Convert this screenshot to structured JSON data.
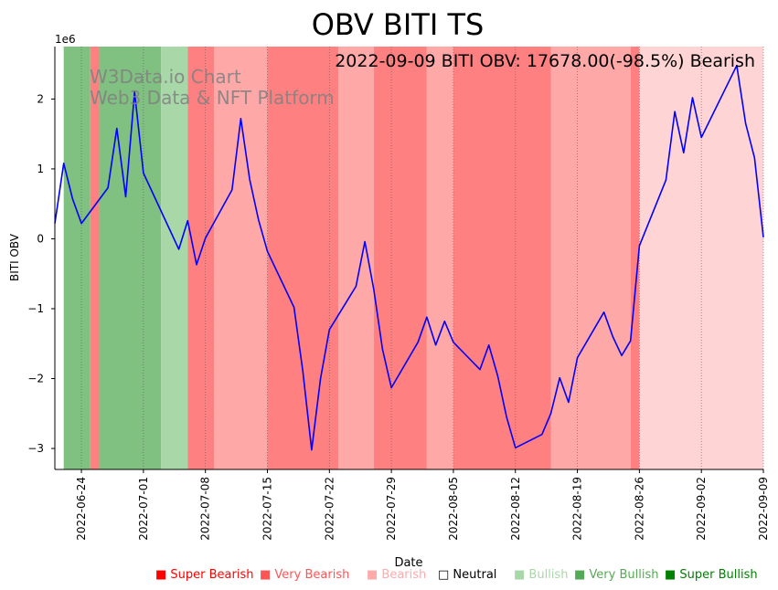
{
  "chart_data": {
    "type": "line",
    "title": "OBV BITI TS",
    "xlabel": "Date",
    "ylabel": "BITI OBV",
    "y_scale_label": "1e6",
    "annotation": "2022-09-09 BITI OBV: 17678.00(-98.5%) Bearish",
    "watermark": [
      "W3Data.io Chart",
      "Web3 Data & NFT Platform"
    ],
    "xlim": [
      "2022-06-21",
      "2022-09-09"
    ],
    "ylim": [
      -3.3,
      2.75
    ],
    "y_ticks": [
      -3,
      -2,
      -1,
      0,
      1,
      2
    ],
    "y_tick_labels": [
      "−3",
      "−2",
      "−1",
      "0",
      "1",
      "2"
    ],
    "x_ticks": [
      "2022-06-24",
      "2022-07-01",
      "2022-07-08",
      "2022-07-15",
      "2022-07-22",
      "2022-07-29",
      "2022-08-05",
      "2022-08-12",
      "2022-08-19",
      "2022-08-26",
      "2022-09-02",
      "2022-09-09"
    ],
    "series": [
      {
        "name": "BITI OBV",
        "color": "#0000ff",
        "unit": "1e6",
        "x": [
          "2022-06-21",
          "2022-06-22",
          "2022-06-23",
          "2022-06-24",
          "2022-06-27",
          "2022-06-28",
          "2022-06-29",
          "2022-06-30",
          "2022-07-01",
          "2022-07-05",
          "2022-07-06",
          "2022-07-07",
          "2022-07-08",
          "2022-07-11",
          "2022-07-12",
          "2022-07-13",
          "2022-07-14",
          "2022-07-15",
          "2022-07-18",
          "2022-07-19",
          "2022-07-20",
          "2022-07-21",
          "2022-07-22",
          "2022-07-25",
          "2022-07-26",
          "2022-07-27",
          "2022-07-28",
          "2022-07-29",
          "2022-08-01",
          "2022-08-02",
          "2022-08-03",
          "2022-08-04",
          "2022-08-05",
          "2022-08-08",
          "2022-08-09",
          "2022-08-10",
          "2022-08-11",
          "2022-08-12",
          "2022-08-15",
          "2022-08-16",
          "2022-08-17",
          "2022-08-18",
          "2022-08-19",
          "2022-08-22",
          "2022-08-23",
          "2022-08-24",
          "2022-08-25",
          "2022-08-26",
          "2022-08-29",
          "2022-08-30",
          "2022-08-31",
          "2022-09-01",
          "2022-09-02",
          "2022-09-06",
          "2022-09-07",
          "2022-09-08",
          "2022-09-09"
        ],
        "values": [
          0.22,
          1.08,
          0.57,
          0.22,
          0.73,
          1.58,
          0.6,
          2.1,
          0.94,
          -0.15,
          0.26,
          -0.37,
          0.01,
          0.7,
          1.72,
          0.85,
          0.27,
          -0.18,
          -0.98,
          -1.9,
          -3.02,
          -2.0,
          -1.3,
          -0.68,
          -0.04,
          -0.72,
          -1.58,
          -2.13,
          -1.48,
          -1.12,
          -1.52,
          -1.18,
          -1.48,
          -1.87,
          -1.52,
          -1.96,
          -2.55,
          -2.99,
          -2.8,
          -2.5,
          -1.99,
          -2.34,
          -1.7,
          -1.05,
          -1.4,
          -1.67,
          -1.46,
          -0.1,
          0.84,
          1.82,
          1.23,
          2.02,
          1.45,
          2.48,
          1.65,
          1.16,
          0.02
        ]
      }
    ],
    "sentiment_bands": [
      {
        "start": "2022-06-22",
        "end": "2022-06-25",
        "level": "very_bullish"
      },
      {
        "start": "2022-06-25",
        "end": "2022-06-26",
        "level": "very_bearish"
      },
      {
        "start": "2022-06-26",
        "end": "2022-07-03",
        "level": "very_bullish"
      },
      {
        "start": "2022-07-03",
        "end": "2022-07-06",
        "level": "bullish"
      },
      {
        "start": "2022-07-06",
        "end": "2022-07-09",
        "level": "very_bearish"
      },
      {
        "start": "2022-07-09",
        "end": "2022-07-15",
        "level": "bearish"
      },
      {
        "start": "2022-07-15",
        "end": "2022-07-23",
        "level": "very_bearish"
      },
      {
        "start": "2022-07-23",
        "end": "2022-07-27",
        "level": "bearish"
      },
      {
        "start": "2022-07-27",
        "end": "2022-08-02",
        "level": "very_bearish"
      },
      {
        "start": "2022-08-02",
        "end": "2022-08-05",
        "level": "bearish"
      },
      {
        "start": "2022-08-05",
        "end": "2022-08-16",
        "level": "very_bearish"
      },
      {
        "start": "2022-08-16",
        "end": "2022-08-25",
        "level": "bearish"
      },
      {
        "start": "2022-08-25",
        "end": "2022-08-26",
        "level": "very_bearish"
      },
      {
        "start": "2022-08-26",
        "end": "2022-09-09",
        "level": "light_bearish"
      }
    ],
    "band_colors": {
      "super_bearish": "#ff0000",
      "very_bearish": "#ff8080",
      "bearish": "#ffa8a8",
      "light_bearish": "#ffd4d4",
      "bullish": "#a8d8a8",
      "very_bullish": "#80c080",
      "super_bullish": "#008000"
    },
    "legend": [
      {
        "marker": "■",
        "label": "Super Bearish",
        "color": "#ff0000"
      },
      {
        "marker": "■",
        "label": "Very Bearish",
        "color": "#ff5555"
      },
      {
        "marker": "■",
        "label": "Bearish",
        "color": "#ffaaaa"
      },
      {
        "marker": "□",
        "label": "Neutral",
        "color": "#000000"
      },
      {
        "marker": "■",
        "label": "Bullish",
        "color": "#a8d8a8"
      },
      {
        "marker": "■",
        "label": "Very Bullish",
        "color": "#55aa55"
      },
      {
        "marker": "■",
        "label": "Super Bullish",
        "color": "#008000"
      }
    ]
  }
}
